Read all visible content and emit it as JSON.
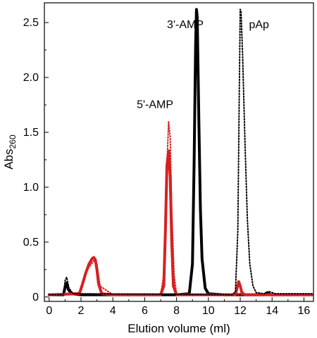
{
  "chart_data": {
    "type": "line",
    "xlabel": "Elution volume (ml)",
    "ylabel": "Abs",
    "ylabel_sub": "260",
    "xlim": [
      -0.3,
      16.6
    ],
    "ylim": [
      -0.04,
      2.68
    ],
    "xticks": [
      0,
      2,
      4,
      6,
      8,
      10,
      12,
      14,
      16
    ],
    "yticks": [
      0,
      0.5,
      1.0,
      1.5,
      2.0,
      2.5
    ],
    "ytick_labels": [
      "0",
      "0.5",
      "1.0",
      "1.5",
      "2.0",
      "2.5"
    ],
    "grid": false,
    "legend": "none",
    "annotations": [
      {
        "text": "3'-AMP",
        "x": 7.4,
        "y": 2.45
      },
      {
        "text": "pAp",
        "x": 12.55,
        "y": 2.45
      },
      {
        "text": "5'-AMP",
        "x": 5.5,
        "y": 1.72
      }
    ],
    "series": [
      {
        "color": "#000000",
        "style": "solid",
        "x": [
          0,
          0.9,
          1.0,
          1.1,
          1.2,
          1.4,
          2,
          4,
          6,
          8,
          8.8,
          9.0,
          9.1,
          9.2,
          9.25,
          9.3,
          9.4,
          9.5,
          9.6,
          9.8,
          10.0,
          11,
          12,
          13.5,
          13.7,
          13.9,
          14.5,
          16.5
        ],
        "y": [
          0.02,
          0.02,
          0.09,
          0.13,
          0.07,
          0.03,
          0.02,
          0.02,
          0.02,
          0.02,
          0.03,
          0.3,
          1.2,
          2.3,
          2.62,
          2.55,
          1.6,
          0.8,
          0.35,
          0.08,
          0.03,
          0.02,
          0.02,
          0.02,
          0.04,
          0.02,
          0.02,
          0.02
        ]
      },
      {
        "color": "#d62020",
        "style": "solid",
        "x": [
          0,
          1.9,
          2.1,
          2.3,
          2.5,
          2.7,
          2.8,
          2.9,
          3.0,
          3.1,
          3.3,
          4,
          7.0,
          7.2,
          7.3,
          7.4,
          7.5,
          7.6,
          7.7,
          7.8,
          8.0,
          9,
          11.7,
          11.8,
          11.9,
          12.0,
          12.1,
          12.3,
          13,
          16.5
        ],
        "y": [
          0.02,
          0.03,
          0.12,
          0.22,
          0.3,
          0.35,
          0.36,
          0.34,
          0.25,
          0.12,
          0.03,
          0.02,
          0.02,
          0.1,
          0.6,
          1.2,
          1.33,
          1.1,
          0.5,
          0.1,
          0.02,
          0.02,
          0.02,
          0.08,
          0.14,
          0.1,
          0.04,
          0.02,
          0.02,
          0.02
        ]
      },
      {
        "color": "#d62020",
        "style": "dotted",
        "x": [
          0,
          1.9,
          2.2,
          2.5,
          2.8,
          3.0,
          3.2,
          4,
          7.0,
          7.2,
          7.35,
          7.5,
          7.6,
          7.7,
          7.85,
          8.0,
          9,
          16.5
        ],
        "y": [
          0.02,
          0.04,
          0.18,
          0.27,
          0.33,
          0.3,
          0.1,
          0.02,
          0.02,
          0.2,
          1.0,
          1.6,
          1.45,
          0.8,
          0.2,
          0.03,
          0.02,
          0.02
        ]
      },
      {
        "color": "#000000",
        "style": "dotted",
        "x": [
          0,
          0.9,
          1.0,
          1.1,
          1.25,
          1.5,
          11.5,
          11.7,
          11.85,
          11.95,
          12.0,
          12.05,
          12.15,
          12.3,
          12.45,
          12.6,
          12.8,
          13.0,
          13.5,
          13.8,
          14.2,
          16.5
        ],
        "y": [
          0.02,
          0.02,
          0.15,
          0.18,
          0.08,
          0.03,
          0.02,
          0.05,
          0.6,
          2.0,
          2.62,
          2.6,
          2.2,
          1.4,
          0.7,
          0.3,
          0.1,
          0.04,
          0.03,
          0.05,
          0.03,
          0.03
        ]
      }
    ]
  }
}
